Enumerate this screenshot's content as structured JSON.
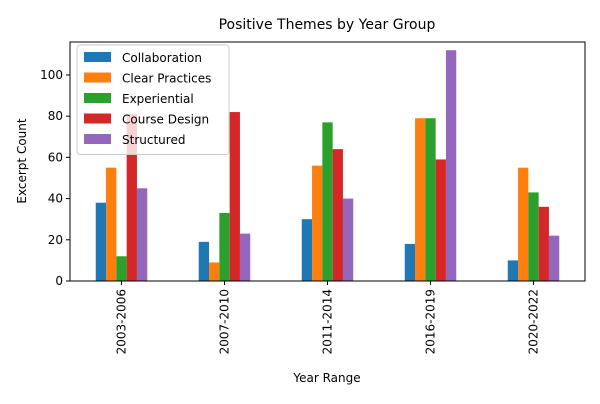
{
  "chart_data": {
    "type": "bar",
    "title": "Positive Themes by Year Group",
    "xlabel": "Year Range",
    "ylabel": "Excerpt Count",
    "categories": [
      "2003-2006",
      "2007-2010",
      "2011-2014",
      "2016-2019",
      "2020-2022"
    ],
    "series": [
      {
        "name": "Collaboration",
        "color": "#1f77b4",
        "values": [
          38,
          19,
          30,
          18,
          10
        ]
      },
      {
        "name": "Clear Practices",
        "color": "#ff7f0e",
        "values": [
          55,
          9,
          56,
          79,
          55
        ]
      },
      {
        "name": "Experiential",
        "color": "#2ca02c",
        "values": [
          12,
          33,
          77,
          79,
          43
        ]
      },
      {
        "name": "Course Design",
        "color": "#d62728",
        "values": [
          81,
          82,
          64,
          59,
          36
        ]
      },
      {
        "name": "Structured",
        "color": "#9467bd",
        "values": [
          45,
          23,
          40,
          112,
          22
        ]
      }
    ],
    "ylim": [
      0,
      116
    ],
    "yticks": [
      0,
      20,
      40,
      60,
      80,
      100
    ],
    "grid": false,
    "legend_position": "top-left"
  }
}
